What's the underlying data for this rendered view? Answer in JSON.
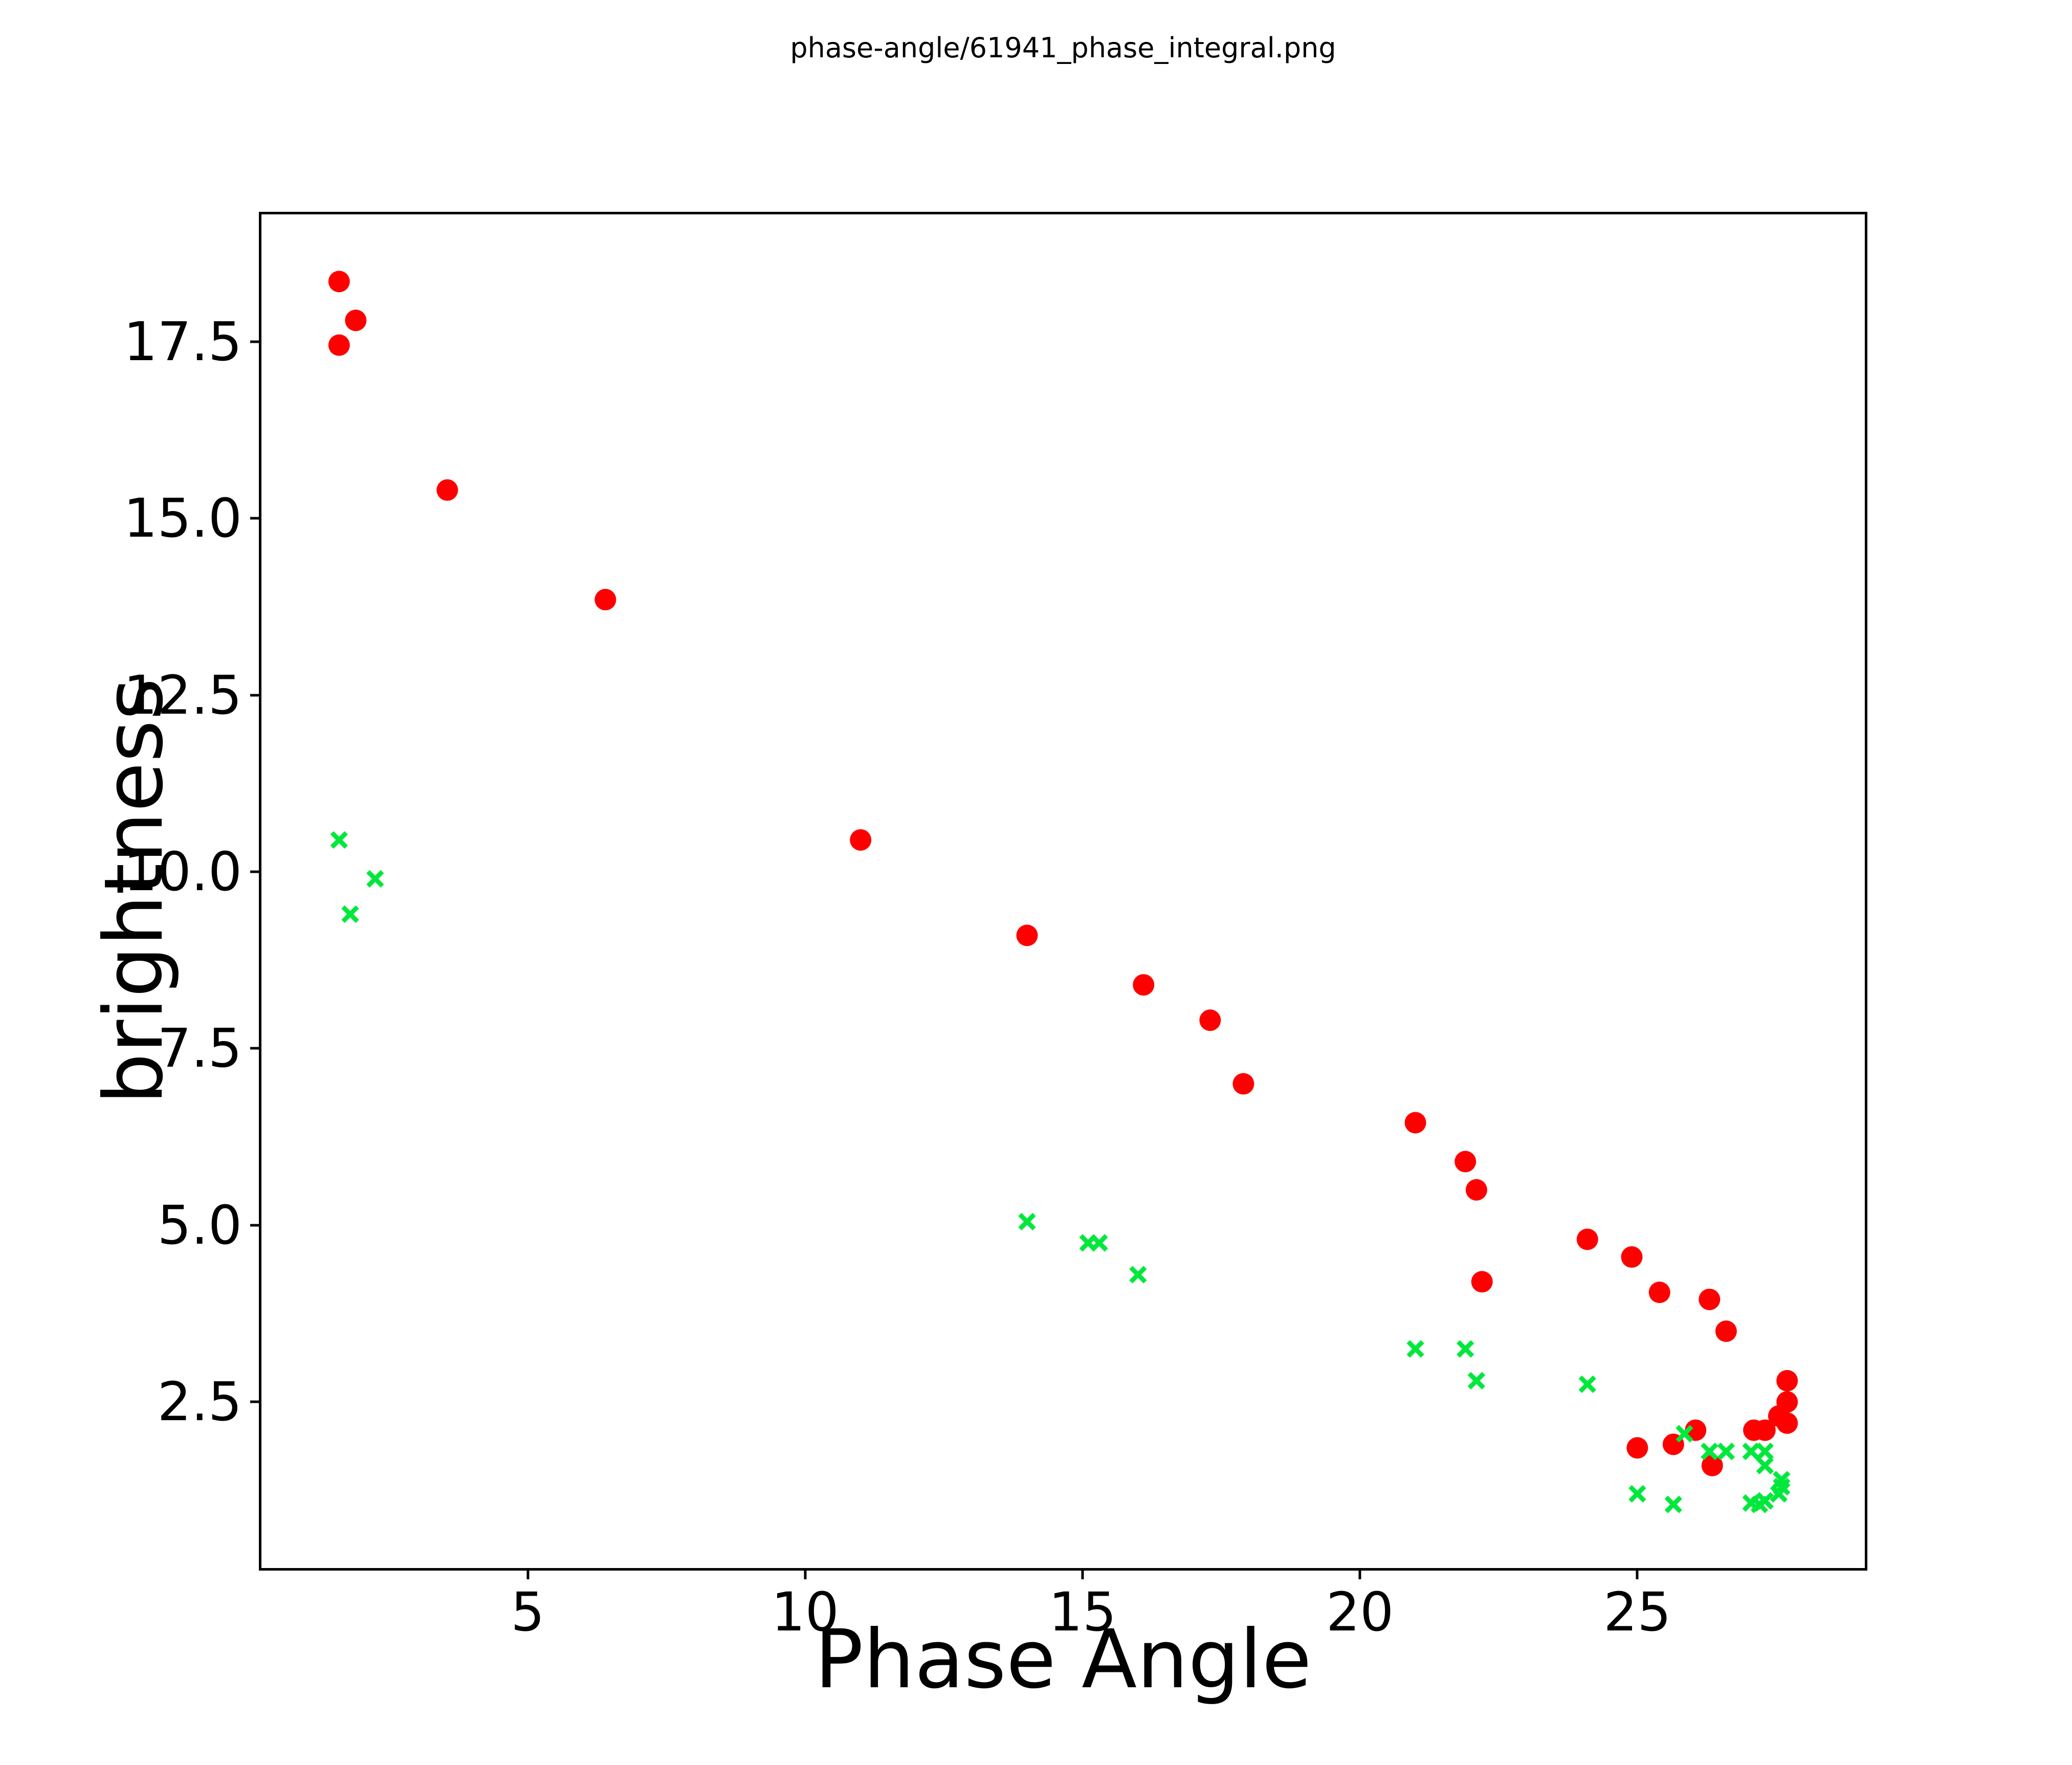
{
  "title": "phase-angle/61941_phase_integral.png",
  "colors": {
    "background": "#ffffff",
    "axis": "#000000",
    "red_series": "#ff0000",
    "green_series": "#00e83c"
  },
  "chart_data": {
    "type": "scatter",
    "title": "phase-angle/61941_phase_integral.png",
    "xlabel": "Phase Angle",
    "ylabel": "brightness",
    "xlim": [
      0.2,
      29.1
    ],
    "ylim": [
      0.15,
      19.3
    ],
    "x_ticks": [
      5,
      10,
      15,
      20,
      25
    ],
    "y_ticks": [
      2.5,
      5.0,
      7.5,
      10.0,
      12.5,
      15.0,
      17.5
    ],
    "grid": false,
    "legend_position": "none",
    "series": [
      {
        "name": "red-circles",
        "marker": "circle",
        "marker_diameter_px": 42,
        "color": "#ff0000",
        "points": [
          [
            1.6,
            18.35
          ],
          [
            1.9,
            17.8
          ],
          [
            1.6,
            17.45
          ],
          [
            3.55,
            15.4
          ],
          [
            6.4,
            13.85
          ],
          [
            11.0,
            10.45
          ],
          [
            14.0,
            9.1
          ],
          [
            16.1,
            8.4
          ],
          [
            17.3,
            7.9
          ],
          [
            17.9,
            7.0
          ],
          [
            21.0,
            6.45
          ],
          [
            21.9,
            5.9
          ],
          [
            22.1,
            5.5
          ],
          [
            22.2,
            4.2
          ],
          [
            24.1,
            4.8
          ],
          [
            24.9,
            4.55
          ],
          [
            25.4,
            4.05
          ],
          [
            26.3,
            3.95
          ],
          [
            26.6,
            3.5
          ],
          [
            27.7,
            2.8
          ],
          [
            27.7,
            2.5
          ],
          [
            27.55,
            2.3
          ],
          [
            27.7,
            2.2
          ],
          [
            27.1,
            2.1
          ],
          [
            27.3,
            2.1
          ],
          [
            26.05,
            2.1
          ],
          [
            25.65,
            1.9
          ],
          [
            25.0,
            1.85
          ],
          [
            26.35,
            1.6
          ]
        ]
      },
      {
        "name": "green-crosses",
        "marker": "x",
        "marker_size_px": 28,
        "color": "#00e83c",
        "points": [
          [
            1.6,
            10.45
          ],
          [
            2.25,
            9.9
          ],
          [
            1.8,
            9.4
          ],
          [
            14.0,
            5.05
          ],
          [
            15.1,
            4.75
          ],
          [
            15.3,
            4.75
          ],
          [
            16.0,
            4.3
          ],
          [
            21.0,
            3.25
          ],
          [
            21.9,
            3.25
          ],
          [
            22.1,
            2.8
          ],
          [
            24.1,
            2.75
          ],
          [
            25.85,
            2.05
          ],
          [
            26.3,
            1.8
          ],
          [
            26.6,
            1.8
          ],
          [
            27.05,
            1.8
          ],
          [
            27.3,
            1.8
          ],
          [
            27.3,
            1.6
          ],
          [
            27.6,
            1.4
          ],
          [
            27.6,
            1.3
          ],
          [
            27.55,
            1.2
          ],
          [
            27.3,
            1.1
          ],
          [
            27.2,
            1.05
          ],
          [
            27.05,
            1.07
          ],
          [
            25.0,
            1.2
          ],
          [
            25.65,
            1.05
          ]
        ]
      }
    ]
  }
}
